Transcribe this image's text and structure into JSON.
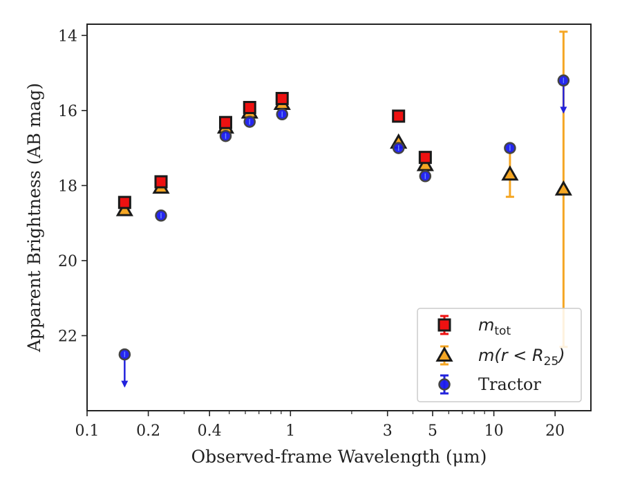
{
  "chart_data": {
    "type": "scatter",
    "title": "",
    "xlabel": "Observed-frame Wavelength (μm)",
    "ylabel": "Apparent Brightness (AB mag)",
    "xscale": "log",
    "xlim": [
      0.1,
      30
    ],
    "ylim": [
      24.0,
      13.7
    ],
    "y_inverted": true,
    "x_ticks": [
      0.1,
      0.2,
      0.4,
      1,
      3,
      5,
      10,
      20
    ],
    "x_tick_labels": [
      "0.1",
      "0.2",
      "0.4",
      "1",
      "3",
      "5",
      "10",
      "20"
    ],
    "y_ticks": [
      14,
      16,
      18,
      20,
      22
    ],
    "y_tick_labels": [
      "14",
      "16",
      "18",
      "20",
      "22"
    ],
    "grid": false,
    "legend_position": "lower-right",
    "series": [
      {
        "name": "m_tot",
        "legend_main": "m",
        "legend_sub": "tot",
        "marker": "square",
        "color": "#ee1111",
        "edgecolor": "#1a1a1a",
        "errorcolor": "#ee1111",
        "points": [
          {
            "x": 0.153,
            "y": 18.45
          },
          {
            "x": 0.231,
            "y": 17.9
          },
          {
            "x": 0.48,
            "y": 16.32
          },
          {
            "x": 0.63,
            "y": 15.92
          },
          {
            "x": 0.91,
            "y": 15.68
          },
          {
            "x": 3.4,
            "y": 16.15
          },
          {
            "x": 4.6,
            "y": 17.25
          }
        ]
      },
      {
        "name": "m(r < R_25)",
        "legend_main": "m(r < R",
        "legend_sub": "25",
        "legend_close": ")",
        "marker": "triangle",
        "color": "#f5a623",
        "edgecolor": "#1a1a1a",
        "errorcolor": "#f5a623",
        "points": [
          {
            "x": 0.153,
            "y": 18.65
          },
          {
            "x": 0.231,
            "y": 18.05
          },
          {
            "x": 0.48,
            "y": 16.45
          },
          {
            "x": 0.63,
            "y": 16.05
          },
          {
            "x": 0.91,
            "y": 15.82
          },
          {
            "x": 3.4,
            "y": 16.85
          },
          {
            "x": 4.6,
            "y": 17.45
          },
          {
            "x": 12.0,
            "y": 17.7,
            "yerr_low": 17.1,
            "yerr_high": 18.3
          },
          {
            "x": 22.0,
            "y": 18.1,
            "yerr_low": 13.9,
            "yerr_high": 22.3
          }
        ]
      },
      {
        "name": "Tractor",
        "legend_main": "Tractor",
        "marker": "circle",
        "color": "#1a1aee",
        "edgecolor": "#444444",
        "errorcolor": "#2222dd",
        "points": [
          {
            "x": 0.153,
            "y": 22.5,
            "upper_limit": true
          },
          {
            "x": 0.231,
            "y": 18.8
          },
          {
            "x": 0.48,
            "y": 16.68
          },
          {
            "x": 0.63,
            "y": 16.3
          },
          {
            "x": 0.91,
            "y": 16.1
          },
          {
            "x": 3.4,
            "y": 17.0
          },
          {
            "x": 4.6,
            "y": 17.75
          },
          {
            "x": 12.0,
            "y": 17.0
          },
          {
            "x": 22.0,
            "y": 15.2,
            "upper_limit": true
          }
        ]
      }
    ]
  }
}
